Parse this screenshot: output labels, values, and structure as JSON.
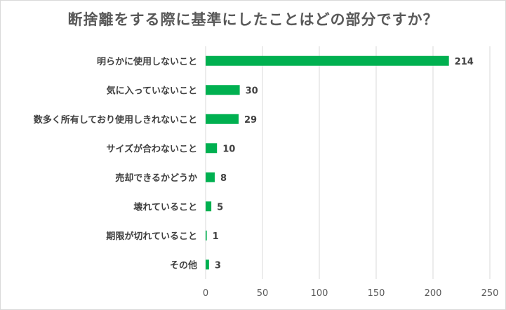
{
  "chart_data": {
    "type": "bar",
    "orientation": "horizontal",
    "title": "断捨離をする際に基準にしたことはどの部分ですか？",
    "categories": [
      "明らかに使用しないこと",
      "気に入っていないこと",
      "数多く所有しており使用しきれないこと",
      "サイズが合わないこと",
      "売却できるかどうか",
      "壊れていること",
      "期限が切れていること",
      "その他"
    ],
    "values": [
      214,
      30,
      29,
      10,
      8,
      5,
      1,
      3
    ],
    "xlim": [
      0,
      250
    ],
    "xticks": [
      0,
      50,
      100,
      150,
      200,
      250
    ],
    "grid": "vertical",
    "bar_color": "#00b050",
    "legend": "none"
  }
}
